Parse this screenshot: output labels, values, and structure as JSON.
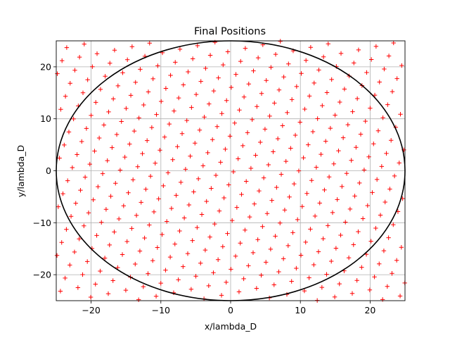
{
  "chart_data": {
    "type": "scatter",
    "title": "Final Positions",
    "xlabel": "x/lambda_D",
    "ylabel": "y/lambda_D",
    "xlim": [
      -25,
      25
    ],
    "ylim": [
      -25,
      25
    ],
    "grid": true,
    "x_ticks": [
      -20,
      -10,
      0,
      10,
      20
    ],
    "y_ticks": [
      -20,
      -10,
      0,
      10,
      20
    ],
    "x_tick_labels": [
      "−20",
      "−10",
      "0",
      "10",
      "20"
    ],
    "y_tick_labels": [
      "−20",
      "−10",
      "0",
      "10",
      "20"
    ],
    "marker": "+",
    "marker_color": "#ff0000",
    "boundary": {
      "shape": "circle",
      "center": [
        0,
        0
      ],
      "radius": 25,
      "color": "#000000"
    },
    "lattice": {
      "spacing": 2.6,
      "rotation_deg": 15,
      "x_range": [
        -25,
        25
      ],
      "y_range": [
        -25,
        25
      ]
    }
  }
}
